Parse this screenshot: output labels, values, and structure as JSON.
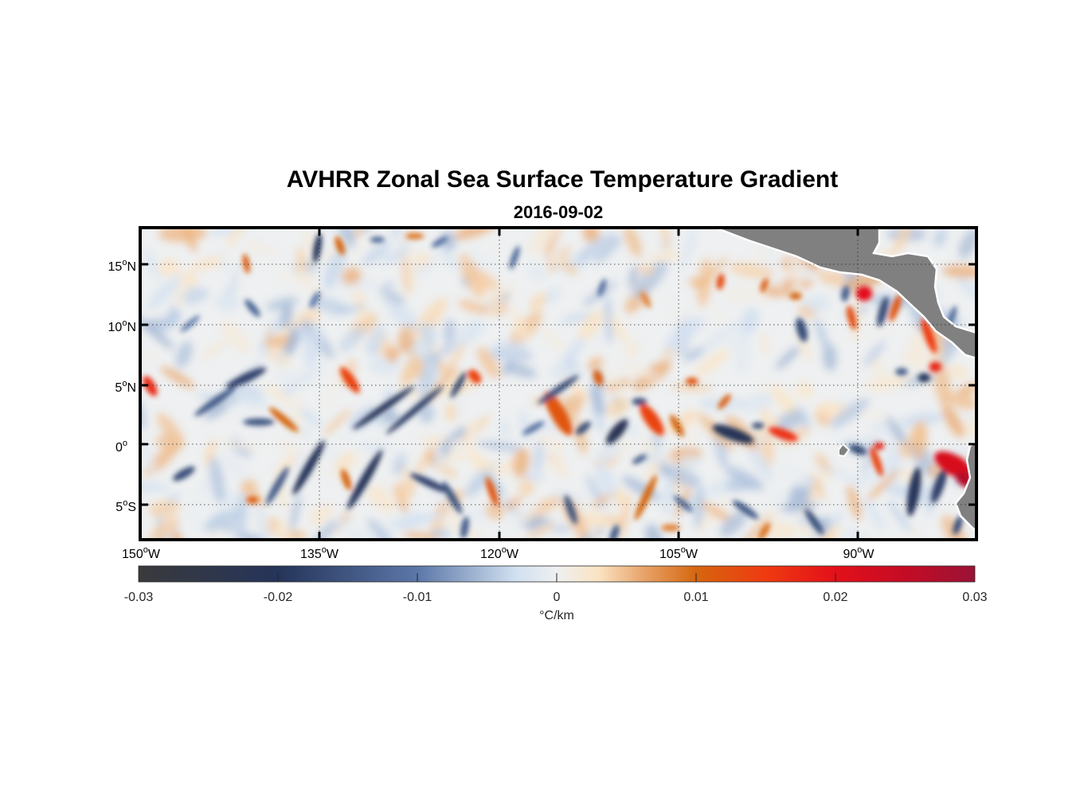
{
  "chart_data": {
    "type": "heatmap",
    "title": "AVHRR Zonal Sea Surface Temperature Gradient",
    "subtitle": "2016-09-02",
    "x_range_deg": [
      -150,
      -83
    ],
    "y_range_deg": [
      -8,
      18
    ],
    "x_ticks": [
      {
        "value": -150,
        "num": "150",
        "sup": "o",
        "suffix": "W"
      },
      {
        "value": -135,
        "num": "135",
        "sup": "o",
        "suffix": "W"
      },
      {
        "value": -120,
        "num": "120",
        "sup": "o",
        "suffix": "W"
      },
      {
        "value": -105,
        "num": "105",
        "sup": "o",
        "suffix": "W"
      },
      {
        "value": -90,
        "num": "90",
        "sup": "o",
        "suffix": "W"
      }
    ],
    "y_ticks": [
      {
        "value": 15,
        "num": "15",
        "sup": "o",
        "suffix": "N"
      },
      {
        "value": 10,
        "num": "10",
        "sup": "o",
        "suffix": "N"
      },
      {
        "value": 5,
        "num": "5",
        "sup": "o",
        "suffix": "N"
      },
      {
        "value": 0,
        "num": "0",
        "sup": "o",
        "suffix": ""
      },
      {
        "value": -5,
        "num": "5",
        "sup": "o",
        "suffix": "S"
      }
    ],
    "colorbar": {
      "range": [
        -0.03,
        0.03
      ],
      "ticks": [
        "-0.03",
        "-0.02",
        "-0.01",
        "0",
        "0.01",
        "0.02",
        "0.03"
      ],
      "label": "°C/km",
      "stops": [
        {
          "v": -0.03,
          "c": "#3a3a3c"
        },
        {
          "v": -0.02,
          "c": "#25345a"
        },
        {
          "v": -0.01,
          "c": "#5b77a8"
        },
        {
          "v": -0.003,
          "c": "#d0dff0"
        },
        {
          "v": 0,
          "c": "#eef0f1"
        },
        {
          "v": 0.003,
          "c": "#fbe3c3"
        },
        {
          "v": 0.006,
          "c": "#e9a870"
        },
        {
          "v": 0.01,
          "c": "#d6660f"
        },
        {
          "v": 0.015,
          "c": "#ef3a10"
        },
        {
          "v": 0.02,
          "c": "#e3101a"
        },
        {
          "v": 0.025,
          "c": "#c40c25"
        },
        {
          "v": 0.03,
          "c": "#9a1236"
        }
      ]
    },
    "features": [
      {
        "lon": -149.2,
        "lat": 4.8,
        "v": 0.017,
        "len": 1.8,
        "wid": 0.8,
        "ang": -60
      },
      {
        "lon": -146.5,
        "lat": -2.5,
        "v": -0.016,
        "len": 2.0,
        "wid": 0.7,
        "ang": 30
      },
      {
        "lon": -144.0,
        "lat": 3.5,
        "v": -0.014,
        "len": 4.0,
        "wid": 0.6,
        "ang": 35
      },
      {
        "lon": -141.5,
        "lat": 5.5,
        "v": -0.018,
        "len": 3.5,
        "wid": 0.7,
        "ang": 25
      },
      {
        "lon": -140.5,
        "lat": 1.8,
        "v": -0.015,
        "len": 2.5,
        "wid": 0.6,
        "ang": 0
      },
      {
        "lon": -138.5,
        "lat": 2.0,
        "v": 0.01,
        "len": 3.0,
        "wid": 0.6,
        "ang": -40
      },
      {
        "lon": -139.0,
        "lat": -3.5,
        "v": -0.014,
        "len": 3.5,
        "wid": 0.6,
        "ang": 60
      },
      {
        "lon": -141.0,
        "lat": -4.7,
        "v": 0.011,
        "len": 1.0,
        "wid": 0.6,
        "ang": 0
      },
      {
        "lon": -141.5,
        "lat": 15.0,
        "v": 0.011,
        "len": 1.6,
        "wid": 0.5,
        "ang": -80
      },
      {
        "lon": -141.0,
        "lat": 11.3,
        "v": -0.012,
        "len": 1.8,
        "wid": 0.6,
        "ang": -50
      },
      {
        "lon": -136.5,
        "lat": -2.0,
        "v": -0.02,
        "len": 5.0,
        "wid": 0.7,
        "ang": 60
      },
      {
        "lon": -135.8,
        "lat": 16.3,
        "v": -0.02,
        "len": 2.4,
        "wid": 0.6,
        "ang": 80
      },
      {
        "lon": -134.0,
        "lat": 16.5,
        "v": 0.01,
        "len": 1.6,
        "wid": 0.6,
        "ang": -70
      },
      {
        "lon": -133.2,
        "lat": 5.3,
        "v": 0.014,
        "len": 2.5,
        "wid": 0.8,
        "ang": -55
      },
      {
        "lon": -133.5,
        "lat": -3.0,
        "v": 0.01,
        "len": 1.8,
        "wid": 0.6,
        "ang": -70
      },
      {
        "lon": -132.0,
        "lat": -3.0,
        "v": -0.02,
        "len": 5.5,
        "wid": 0.7,
        "ang": 60
      },
      {
        "lon": -130.5,
        "lat": 3.0,
        "v": -0.021,
        "len": 6.0,
        "wid": 0.55,
        "ang": 35
      },
      {
        "lon": -128.0,
        "lat": 2.8,
        "v": -0.019,
        "len": 6.0,
        "wid": 0.5,
        "ang": 40
      },
      {
        "lon": -124.5,
        "lat": 4.9,
        "v": -0.017,
        "len": 2.4,
        "wid": 0.5,
        "ang": 60
      },
      {
        "lon": -123.2,
        "lat": 5.6,
        "v": 0.014,
        "len": 1.3,
        "wid": 0.8,
        "ang": -50
      },
      {
        "lon": -126.8,
        "lat": -3.3,
        "v": -0.018,
        "len": 3.5,
        "wid": 0.6,
        "ang": -25
      },
      {
        "lon": -125.0,
        "lat": -4.5,
        "v": -0.015,
        "len": 3.0,
        "wid": 0.6,
        "ang": -60
      },
      {
        "lon": -121.8,
        "lat": -4.0,
        "v": 0.012,
        "len": 2.5,
        "wid": 0.6,
        "ang": -70
      },
      {
        "lon": -124.0,
        "lat": -7.0,
        "v": -0.014,
        "len": 1.8,
        "wid": 0.6,
        "ang": 80
      },
      {
        "lon": -128.0,
        "lat": 17.3,
        "v": 0.009,
        "len": 1.5,
        "wid": 0.5,
        "ang": 0
      },
      {
        "lon": -126.0,
        "lat": 16.8,
        "v": -0.011,
        "len": 1.5,
        "wid": 0.5,
        "ang": 30
      },
      {
        "lon": -131.0,
        "lat": 17.0,
        "v": -0.012,
        "len": 1.2,
        "wid": 0.5,
        "ang": 0
      },
      {
        "lon": -116.5,
        "lat": 2.5,
        "v": 0.012,
        "len": 4.0,
        "wid": 1.2,
        "ang": -60
      },
      {
        "lon": -116.5,
        "lat": 4.5,
        "v": -0.016,
        "len": 4.0,
        "wid": 0.55,
        "ang": 35
      },
      {
        "lon": -114.5,
        "lat": 1.3,
        "v": -0.016,
        "len": 1.5,
        "wid": 0.6,
        "ang": 40
      },
      {
        "lon": -113.3,
        "lat": 5.5,
        "v": 0.011,
        "len": 1.3,
        "wid": 0.7,
        "ang": -70
      },
      {
        "lon": -111.8,
        "lat": 1.0,
        "v": -0.022,
        "len": 2.5,
        "wid": 0.9,
        "ang": 50
      },
      {
        "lon": -110.0,
        "lat": 3.5,
        "v": -0.016,
        "len": 1.2,
        "wid": 0.6,
        "ang": 0
      },
      {
        "lon": -109.0,
        "lat": 2.0,
        "v": 0.014,
        "len": 3.0,
        "wid": 1.1,
        "ang": -55
      },
      {
        "lon": -107.0,
        "lat": 1.5,
        "v": 0.01,
        "len": 2.0,
        "wid": 0.6,
        "ang": -60
      },
      {
        "lon": -115.5,
        "lat": -5.5,
        "v": -0.015,
        "len": 2.5,
        "wid": 0.6,
        "ang": -70
      },
      {
        "lon": -109.5,
        "lat": -4.5,
        "v": 0.01,
        "len": 4.0,
        "wid": 0.6,
        "ang": 65
      },
      {
        "lon": -110.0,
        "lat": -1.3,
        "v": -0.013,
        "len": 1.3,
        "wid": 0.5,
        "ang": 30
      },
      {
        "lon": -106.5,
        "lat": -5.0,
        "v": -0.012,
        "len": 2.0,
        "wid": 0.5,
        "ang": -40
      },
      {
        "lon": -105.8,
        "lat": 5.2,
        "v": 0.012,
        "len": 1.0,
        "wid": 0.6,
        "ang": 0
      },
      {
        "lon": -102.5,
        "lat": 0.8,
        "v": -0.021,
        "len": 3.5,
        "wid": 1.0,
        "ang": -20
      },
      {
        "lon": -98.5,
        "lat": 0.8,
        "v": 0.016,
        "len": 2.5,
        "wid": 0.8,
        "ang": -20
      },
      {
        "lon": -100.5,
        "lat": 1.5,
        "v": -0.016,
        "len": 1.0,
        "wid": 0.5,
        "ang": 0
      },
      {
        "lon": -103.5,
        "lat": 13.5,
        "v": 0.013,
        "len": 1.3,
        "wid": 0.6,
        "ang": 80
      },
      {
        "lon": -100.0,
        "lat": 13.2,
        "v": 0.011,
        "len": 1.2,
        "wid": 0.5,
        "ang": 70
      },
      {
        "lon": -103.2,
        "lat": 3.5,
        "v": 0.011,
        "len": 1.5,
        "wid": 0.5,
        "ang": 50
      },
      {
        "lon": -101.5,
        "lat": -5.5,
        "v": -0.014,
        "len": 2.5,
        "wid": 0.6,
        "ang": -35
      },
      {
        "lon": -100.0,
        "lat": -7.3,
        "v": 0.009,
        "len": 1.6,
        "wid": 0.6,
        "ang": 60
      },
      {
        "lon": -96.0,
        "lat": -6.5,
        "v": -0.016,
        "len": 2.5,
        "wid": 0.6,
        "ang": -55
      },
      {
        "lon": -97.0,
        "lat": 9.5,
        "v": -0.016,
        "len": 2.0,
        "wid": 0.8,
        "ang": -75
      },
      {
        "lon": -97.5,
        "lat": 12.3,
        "v": 0.01,
        "len": 1.0,
        "wid": 0.6,
        "ang": 0
      },
      {
        "lon": -93.5,
        "lat": 12.5,
        "v": -0.014,
        "len": 1.3,
        "wid": 0.6,
        "ang": 80
      },
      {
        "lon": -93.0,
        "lat": 10.5,
        "v": 0.013,
        "len": 2.0,
        "wid": 0.6,
        "ang": -75
      },
      {
        "lon": -92.0,
        "lat": 12.5,
        "v": 0.02,
        "len": 1.3,
        "wid": 1.2,
        "ang": 0
      },
      {
        "lon": -90.5,
        "lat": 11.0,
        "v": -0.016,
        "len": 2.5,
        "wid": 0.7,
        "ang": 75
      },
      {
        "lon": -89.5,
        "lat": 11.3,
        "v": 0.012,
        "len": 2.3,
        "wid": 0.6,
        "ang": 70
      },
      {
        "lon": -92.5,
        "lat": -0.5,
        "v": -0.016,
        "len": 1.5,
        "wid": 0.7,
        "ang": -20
      },
      {
        "lon": -91.0,
        "lat": -1.5,
        "v": 0.014,
        "len": 2.5,
        "wid": 0.6,
        "ang": -70
      },
      {
        "lon": -90.8,
        "lat": -0.2,
        "v": 0.018,
        "len": 0.8,
        "wid": 0.6,
        "ang": 0
      },
      {
        "lon": -89.0,
        "lat": 6.0,
        "v": -0.014,
        "len": 1.0,
        "wid": 0.6,
        "ang": 0
      },
      {
        "lon": -87.2,
        "lat": 5.5,
        "v": -0.02,
        "len": 1.0,
        "wid": 0.7,
        "ang": 0
      },
      {
        "lon": -86.8,
        "lat": 9.0,
        "v": 0.015,
        "len": 3.0,
        "wid": 0.7,
        "ang": -70
      },
      {
        "lon": -86.3,
        "lat": 6.4,
        "v": 0.018,
        "len": 1.0,
        "wid": 0.8,
        "ang": 0
      },
      {
        "lon": -85.0,
        "lat": 10.5,
        "v": -0.012,
        "len": 2.0,
        "wid": 0.5,
        "ang": 70
      },
      {
        "lon": -88.0,
        "lat": -4.0,
        "v": -0.02,
        "len": 4.0,
        "wid": 0.9,
        "ang": 80
      },
      {
        "lon": -86.0,
        "lat": -3.5,
        "v": -0.018,
        "len": 3.0,
        "wid": 0.8,
        "ang": 70
      },
      {
        "lon": -84.8,
        "lat": -1.8,
        "v": 0.022,
        "len": 3.5,
        "wid": 1.6,
        "ang": -30
      },
      {
        "lon": -84.0,
        "lat": -3.0,
        "v": 0.027,
        "len": 1.6,
        "wid": 1.0,
        "ang": -40
      },
      {
        "lon": -84.5,
        "lat": -6.8,
        "v": -0.016,
        "len": 1.6,
        "wid": 0.6,
        "ang": 70
      },
      {
        "lon": -107.5,
        "lat": -7.0,
        "v": 0.008,
        "len": 1.5,
        "wid": 0.6,
        "ang": 0
      },
      {
        "lon": -112.0,
        "lat": -7.5,
        "v": -0.014,
        "len": 1.5,
        "wid": 0.6,
        "ang": 70
      },
      {
        "lon": -118.5,
        "lat": 1.3,
        "v": -0.011,
        "len": 2.0,
        "wid": 0.5,
        "ang": 30
      },
      {
        "lon": -120.0,
        "lat": 15.5,
        "v": -0.012,
        "len": 2.0,
        "wid": 0.5,
        "ang": 70
      },
      {
        "lon": -113.0,
        "lat": 13.0,
        "v": -0.011,
        "len": 1.5,
        "wid": 0.5,
        "ang": 70
      },
      {
        "lon": -109.5,
        "lat": 12.0,
        "v": 0.008,
        "len": 1.5,
        "wid": 0.5,
        "ang": -60
      },
      {
        "lon": -146.0,
        "lat": 10.0,
        "v": -0.009,
        "len": 2.0,
        "wid": 0.5,
        "ang": 40
      },
      {
        "lon": -136.0,
        "lat": 12.0,
        "v": -0.01,
        "len": 1.5,
        "wid": 0.5,
        "ang": 60
      }
    ]
  }
}
